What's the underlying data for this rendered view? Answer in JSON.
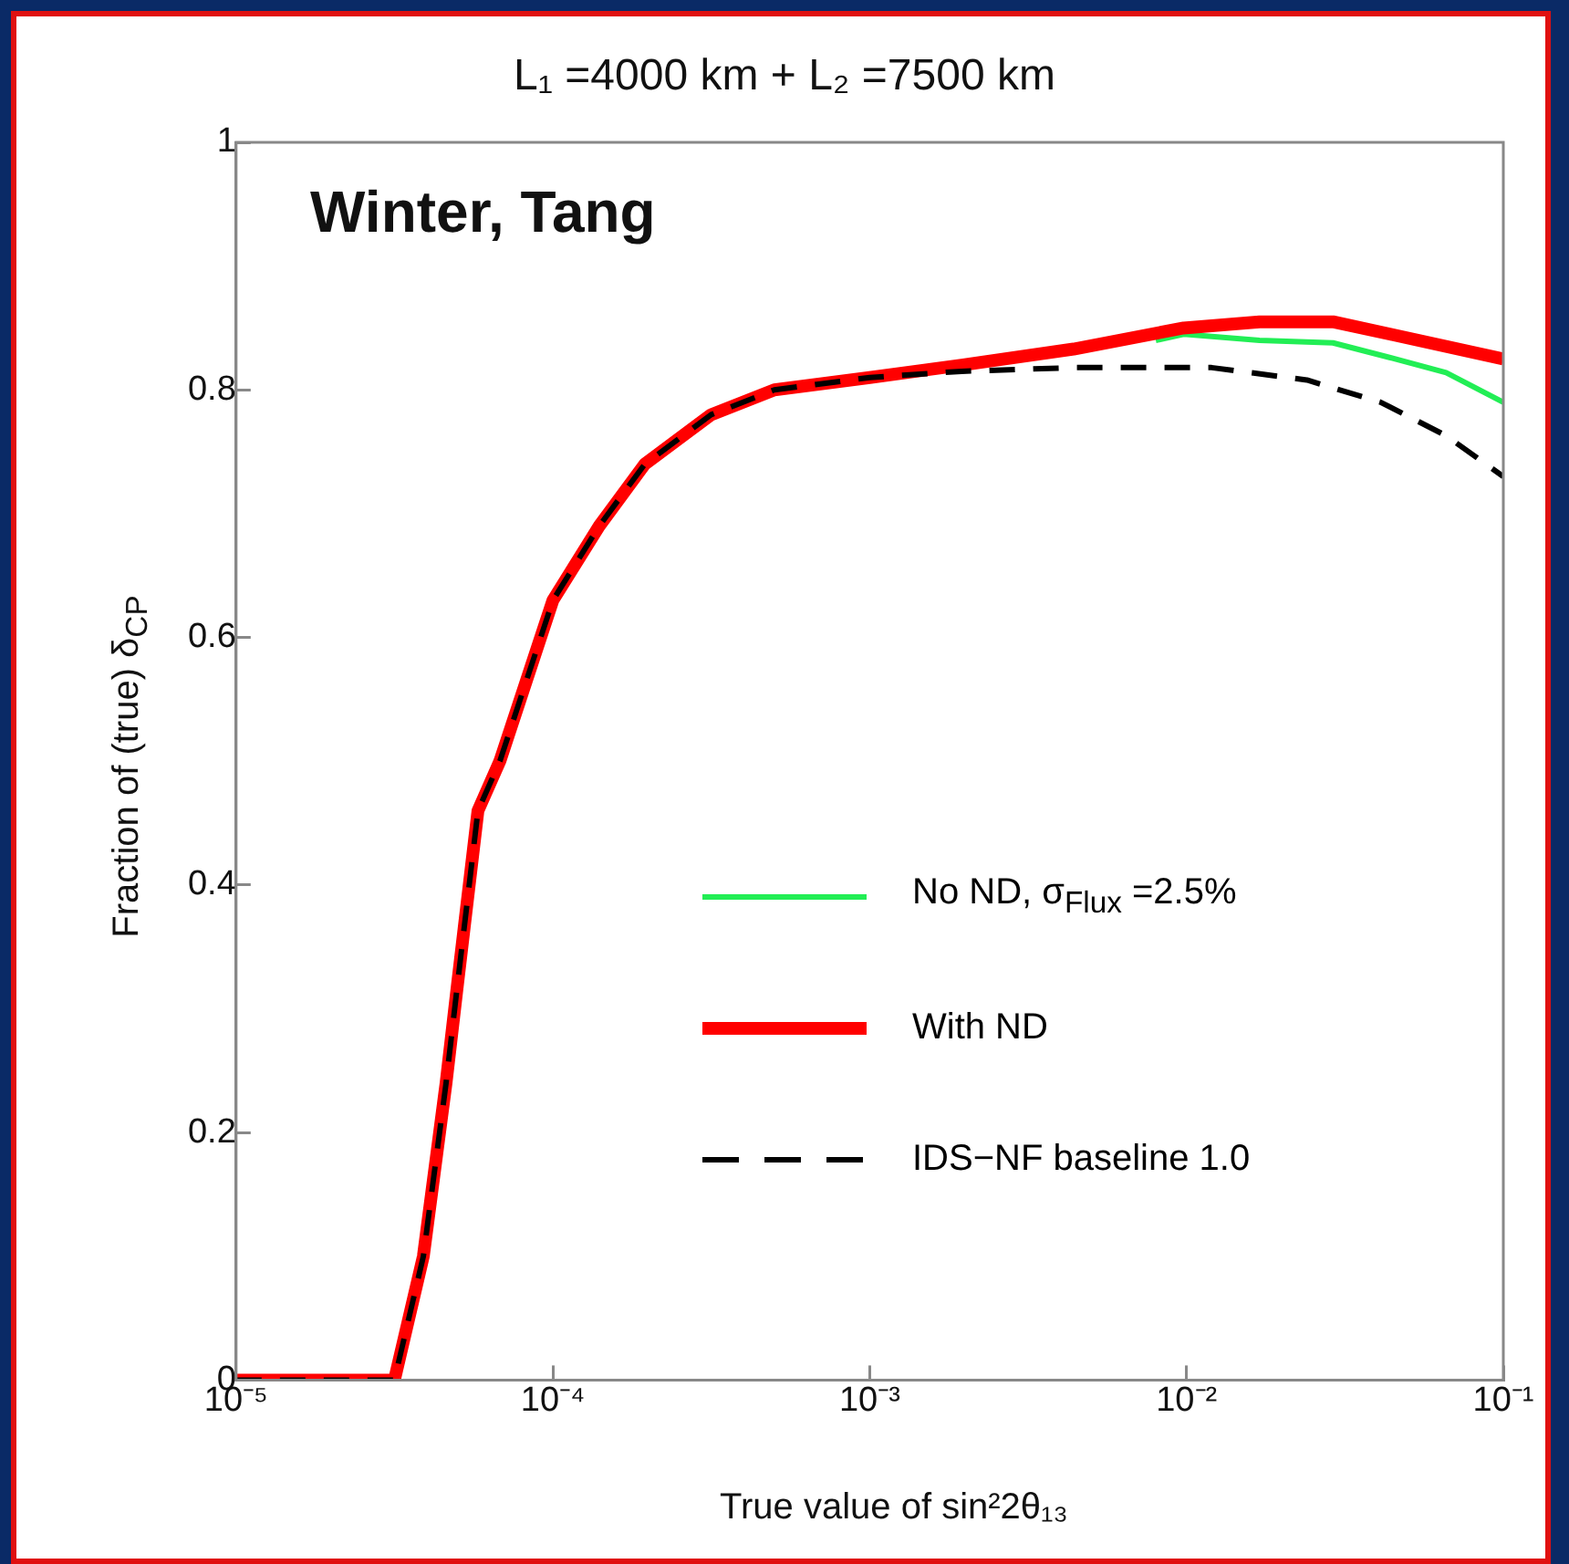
{
  "chart_data": {
    "type": "line",
    "title": "L₁ =4000 km + L₂ =7500 km",
    "xlabel": "True value of sin²2θ₁₃",
    "ylabel": "Fraction of (true) δ$_{CP}$",
    "annotations": [
      "Winter, Tang"
    ],
    "log": "x",
    "grid": false,
    "legend": "center",
    "marker": "none",
    "xlim": [
      1e-05,
      0.1
    ],
    "xticks": [
      {
        "value": 1e-05,
        "label": "10⁻⁵"
      },
      {
        "value": 0.0001,
        "label": "10⁻⁴"
      },
      {
        "value": 0.001,
        "label": "10⁻³"
      },
      {
        "value": 0.01,
        "label": "10⁻²"
      },
      {
        "value": 0.1,
        "label": "10⁻¹"
      }
    ],
    "ylim": [
      0,
      1
    ],
    "yticks": [
      0,
      0.2,
      0.4,
      0.6,
      0.8,
      1
    ],
    "series": [
      {
        "name": "No ND, σ$_{Flux}$ =2.5%",
        "color": "#22ee55",
        "line_style": "solid",
        "x": [
          0.008,
          0.0098,
          0.017,
          0.029,
          0.044,
          0.066,
          0.1
        ],
        "values": [
          0.84,
          0.845,
          0.84,
          0.838,
          0.826,
          0.814,
          0.79
        ]
      },
      {
        "name": "With ND",
        "color": "#ff0000",
        "line_style": "solid",
        "x": [
          1e-05,
          3.16e-05,
          3.9e-05,
          4.6e-05,
          5e-05,
          5.8e-05,
          6.8e-05,
          0.0001,
          0.00014,
          0.000195,
          0.000316,
          0.0005,
          0.001,
          0.00195,
          0.0044,
          0.0098,
          0.017,
          0.029,
          0.044,
          0.1
        ],
        "values": [
          0,
          0,
          0.1,
          0.24,
          0.32,
          0.46,
          0.5,
          0.63,
          0.69,
          0.74,
          0.78,
          0.8,
          0.81,
          0.82,
          0.833,
          0.85,
          0.855,
          0.855,
          0.845,
          0.825
        ]
      },
      {
        "name": "IDS−NF baseline 1.0",
        "color": "#000000",
        "line_style": "dashed",
        "x": [
          1e-05,
          3.16e-05,
          3.9e-05,
          4.6e-05,
          5e-05,
          5.8e-05,
          6.8e-05,
          0.0001,
          0.00014,
          0.000195,
          0.000316,
          0.0005,
          0.001,
          0.00195,
          0.0044,
          0.012,
          0.024,
          0.041,
          0.066,
          0.1
        ],
        "values": [
          0,
          0,
          0.1,
          0.24,
          0.32,
          0.46,
          0.5,
          0.63,
          0.69,
          0.74,
          0.78,
          0.8,
          0.81,
          0.815,
          0.818,
          0.818,
          0.808,
          0.79,
          0.763,
          0.73
        ]
      }
    ]
  }
}
